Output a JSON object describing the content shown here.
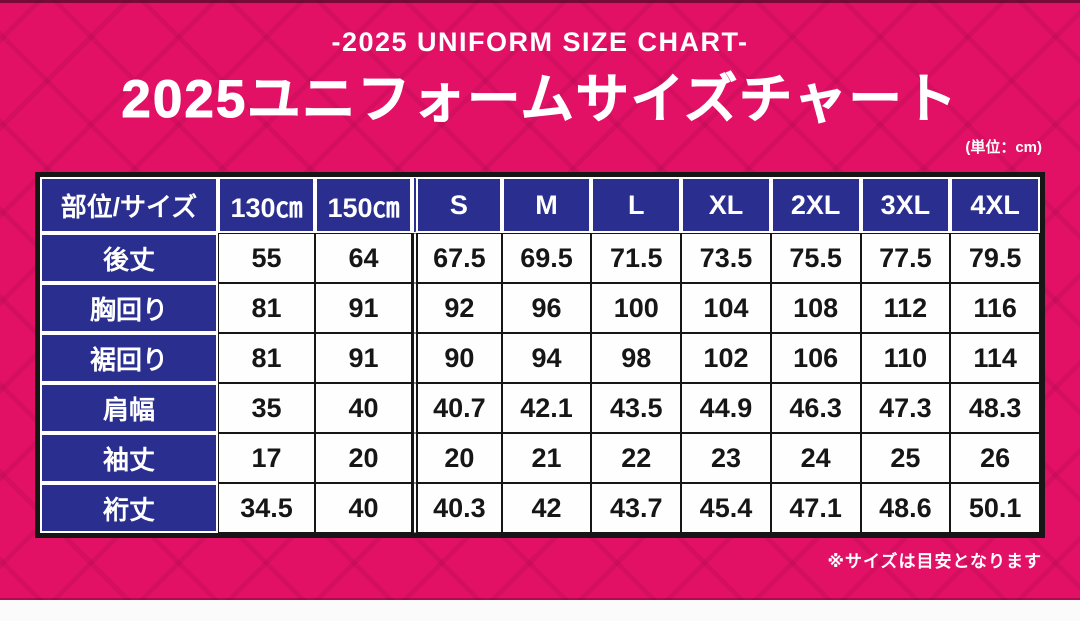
{
  "title_block": {
    "subtitle_en": "-2025 UNIFORM SIZE CHART-",
    "title_ja": "2025ユニフォームサイズチャート",
    "unit_note": "(単位：cm)"
  },
  "chart_data": {
    "type": "table",
    "title": "2025ユニフォームサイズチャート",
    "subtitle": "-2025 UNIFORM SIZE CHART-",
    "unit": "cm",
    "corner_label": "部位/サイズ",
    "columns": [
      "130㎝",
      "150㎝",
      "S",
      "M",
      "L",
      "XL",
      "2XL",
      "3XL",
      "4XL"
    ],
    "rows": [
      {
        "label": "後丈",
        "values": [
          55,
          64,
          67.5,
          69.5,
          71.5,
          73.5,
          75.5,
          77.5,
          79.5
        ]
      },
      {
        "label": "胸回り",
        "values": [
          81,
          91,
          92,
          96,
          100,
          104,
          108,
          112,
          116
        ]
      },
      {
        "label": "裾回り",
        "values": [
          81,
          91,
          90,
          94,
          98,
          102,
          106,
          110,
          114
        ]
      },
      {
        "label": "肩幅",
        "values": [
          35,
          40,
          40.7,
          42.1,
          43.5,
          44.9,
          46.3,
          47.3,
          48.3
        ]
      },
      {
        "label": "袖丈",
        "values": [
          17,
          20,
          20,
          21,
          22,
          23,
          24,
          25,
          26
        ]
      },
      {
        "label": "裄丈",
        "values": [
          34.5,
          40,
          40.3,
          42,
          43.7,
          45.4,
          47.1,
          48.6,
          50.1
        ]
      }
    ],
    "note": "※サイズは目安となります",
    "layout": {
      "double_rule_before_column": "S",
      "header_position": "top-and-left"
    }
  },
  "colors": {
    "background_pink": "#e31166",
    "header_blue": "#2a2e8f",
    "border_black": "#161616",
    "cell_white": "#fefefe",
    "text_white": "#ffffff"
  }
}
